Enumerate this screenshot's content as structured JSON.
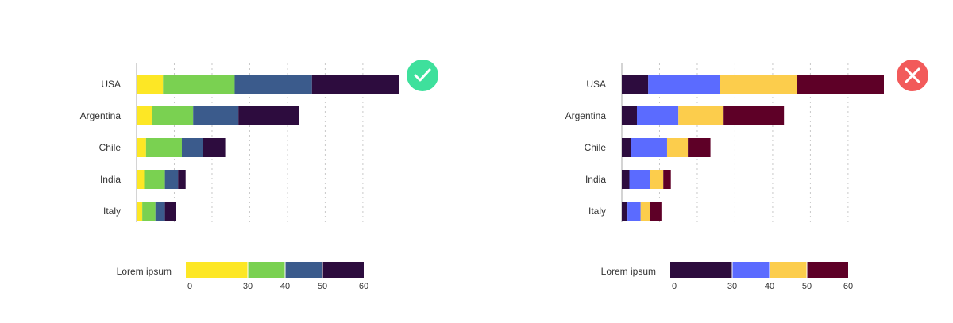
{
  "chart_data": [
    {
      "type": "bar",
      "orientation": "horizontal",
      "stacked": true,
      "categories": [
        "USA",
        "Argentina",
        "Chile",
        "India",
        "Italy"
      ],
      "series": [
        {
          "values": [
            7,
            4,
            2.5,
            2,
            1.5
          ],
          "color": "#fde725"
        },
        {
          "values": [
            19,
            11,
            9.5,
            5.5,
            3.5
          ],
          "color": "#7ad151"
        },
        {
          "values": [
            20.5,
            12,
            5.5,
            3.5,
            2.5
          ],
          "color": "#3b5b8c"
        },
        {
          "values": [
            23,
            16,
            6,
            2,
            3
          ],
          "color": "#2d0c3e"
        }
      ],
      "xlim": [
        0,
        69.5
      ],
      "grid": true,
      "legend": {
        "title": "Lorem ipsum",
        "ticks": [
          "0",
          "30",
          "40",
          "50",
          "60"
        ],
        "bins": [
          [
            0,
            30
          ],
          [
            30,
            40
          ],
          [
            40,
            50
          ],
          [
            50,
            60
          ]
        ],
        "colors": [
          "#fde725",
          "#7ad151",
          "#3b5b8c",
          "#2d0c3e"
        ]
      },
      "status": "correct",
      "status_icon": "check-icon",
      "status_color": "#3ee09c"
    },
    {
      "type": "bar",
      "orientation": "horizontal",
      "stacked": true,
      "categories": [
        "USA",
        "Argentina",
        "Chile",
        "India",
        "Italy"
      ],
      "series": [
        {
          "values": [
            7,
            4,
            2.5,
            2,
            1.5
          ],
          "color": "#2d0c3e"
        },
        {
          "values": [
            19,
            11,
            9.5,
            5.5,
            3.5
          ],
          "color": "#5b6bff"
        },
        {
          "values": [
            20.5,
            12,
            5.5,
            3.5,
            2.5
          ],
          "color": "#fccd4c"
        },
        {
          "values": [
            23,
            16,
            6,
            2,
            3
          ],
          "color": "#5e0027"
        }
      ],
      "xlim": [
        0,
        69.5
      ],
      "grid": true,
      "legend": {
        "title": "Lorem ipsum",
        "ticks": [
          "0",
          "30",
          "40",
          "50",
          "60"
        ],
        "bins": [
          [
            0,
            30
          ],
          [
            30,
            40
          ],
          [
            40,
            50
          ],
          [
            50,
            60
          ]
        ],
        "colors": [
          "#2d0c3e",
          "#5b6bff",
          "#fccd4c",
          "#5e0027"
        ]
      },
      "status": "incorrect",
      "status_icon": "cross-icon",
      "status_color": "#f25a5a"
    }
  ]
}
